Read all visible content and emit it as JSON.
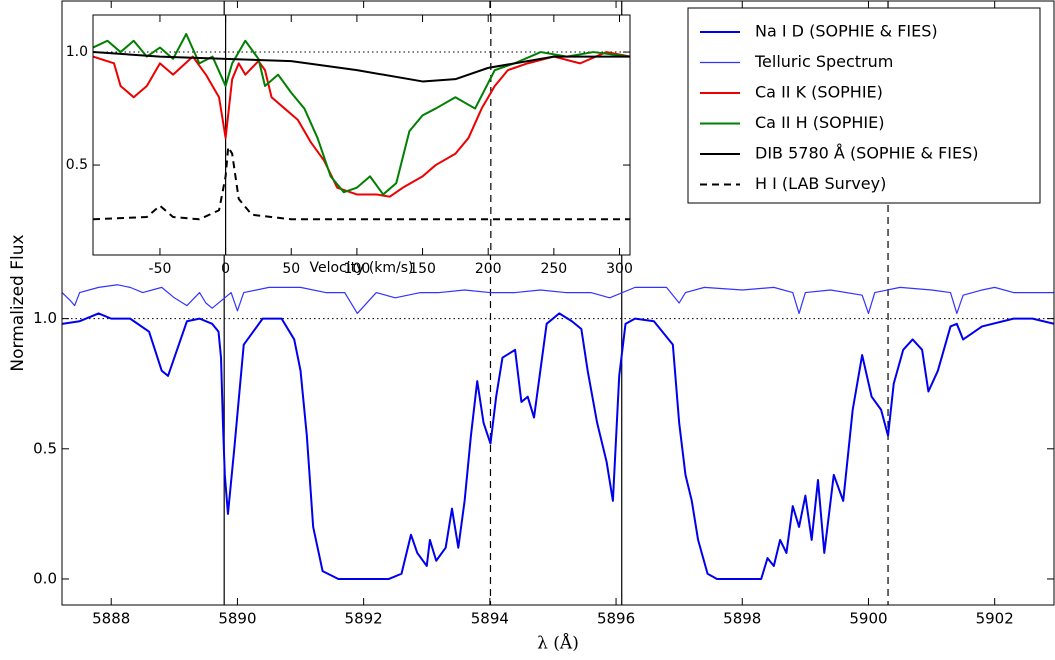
{
  "chart_data": [
    {
      "type": "line",
      "y_label": "Normalized Flux",
      "x_label": "λ (Å)",
      "xlim": [
        5887.22,
        5902.94
      ],
      "ylim": [
        -0.1,
        2.22
      ],
      "xticks": [
        5888,
        5890,
        5892,
        5894,
        5896,
        5898,
        5900,
        5902
      ],
      "yticks": [
        {
          "value": 0,
          "label": "0.0"
        },
        0.5,
        {
          "value": 1,
          "label": "1.0"
        }
      ],
      "hline": 1,
      "vlines": [
        {
          "x": 5889.79,
          "style": "solid"
        },
        {
          "x": 5894.01,
          "style": "dashed"
        },
        {
          "x": 5896.09,
          "style": "solid"
        },
        {
          "x": 5900.31,
          "style": "dashed"
        }
      ],
      "legend": "upper right",
      "series": [
        {
          "name": "Na I D (SOPHIE & FIES)",
          "color": "#0000ee",
          "width": 2,
          "style": "solid",
          "x": [
            5887.22,
            5887.5,
            5887.8,
            5888.0,
            5888.3,
            5888.6,
            5888.8,
            5888.9,
            5889.0,
            5889.2,
            5889.4,
            5889.6,
            5889.7,
            5889.74,
            5889.77,
            5889.8,
            5889.85,
            5889.95,
            5890.1,
            5890.4,
            5890.7,
            5890.9,
            5891.0,
            5891.1,
            5891.2,
            5891.35,
            5891.6,
            5892.0,
            5892.4,
            5892.6,
            5892.75,
            5892.85,
            5893.0,
            5893.05,
            5893.15,
            5893.3,
            5893.4,
            5893.5,
            5893.6,
            5893.7,
            5893.8,
            5893.9,
            5894.01,
            5894.1,
            5894.2,
            5894.4,
            5894.5,
            5894.6,
            5894.7,
            5894.8,
            5894.9,
            5895.1,
            5895.3,
            5895.45,
            5895.55,
            5895.7,
            5895.85,
            5895.95,
            5896.05,
            5896.15,
            5896.3,
            5896.6,
            5896.9,
            5897.0,
            5897.1,
            5897.2,
            5897.3,
            5897.45,
            5897.6,
            5898.0,
            5898.3,
            5898.4,
            5898.5,
            5898.6,
            5898.7,
            5898.8,
            5898.9,
            5899.0,
            5899.1,
            5899.2,
            5899.3,
            5899.45,
            5899.6,
            5899.75,
            5899.9,
            5900.05,
            5900.2,
            5900.31,
            5900.4,
            5900.55,
            5900.7,
            5900.85,
            5900.95,
            5901.1,
            5901.3,
            5901.4,
            5901.5,
            5901.8,
            5902.3,
            5902.6,
            5902.94
          ],
          "values": [
            0.98,
            0.99,
            1.02,
            1.0,
            1.0,
            0.95,
            0.8,
            0.78,
            0.85,
            0.99,
            1.0,
            0.98,
            0.95,
            0.85,
            0.6,
            0.4,
            0.25,
            0.5,
            0.9,
            1.0,
            1.0,
            0.92,
            0.8,
            0.55,
            0.2,
            0.03,
            0.0,
            0.0,
            0.0,
            0.02,
            0.17,
            0.1,
            0.05,
            0.15,
            0.07,
            0.12,
            0.27,
            0.12,
            0.3,
            0.55,
            0.76,
            0.6,
            0.52,
            0.7,
            0.85,
            0.88,
            0.68,
            0.7,
            0.62,
            0.8,
            0.98,
            1.02,
            0.99,
            0.96,
            0.8,
            0.6,
            0.45,
            0.3,
            0.78,
            0.98,
            1.0,
            0.99,
            0.9,
            0.6,
            0.4,
            0.3,
            0.15,
            0.02,
            0.0,
            0.0,
            0.0,
            0.08,
            0.05,
            0.15,
            0.1,
            0.28,
            0.2,
            0.32,
            0.15,
            0.38,
            0.1,
            0.4,
            0.3,
            0.65,
            0.86,
            0.7,
            0.65,
            0.55,
            0.75,
            0.88,
            0.92,
            0.88,
            0.72,
            0.8,
            0.97,
            0.98,
            0.92,
            0.97,
            1.0,
            1.0,
            0.98
          ]
        },
        {
          "name": "Telluric Spectrum",
          "color": "#3333ff",
          "width": 1.2,
          "style": "solid",
          "x": [
            5887.22,
            5887.35,
            5887.42,
            5887.5,
            5887.8,
            5888.1,
            5888.3,
            5888.5,
            5888.8,
            5889.0,
            5889.2,
            5889.4,
            5889.5,
            5889.6,
            5889.9,
            5890.0,
            5890.1,
            5890.5,
            5891.0,
            5891.4,
            5891.7,
            5891.9,
            5892.2,
            5892.5,
            5892.9,
            5893.2,
            5893.6,
            5894.0,
            5894.4,
            5894.8,
            5895.2,
            5895.6,
            5895.9,
            5896.3,
            5896.8,
            5897.0,
            5897.1,
            5897.4,
            5898.0,
            5898.5,
            5898.8,
            5898.9,
            5899.0,
            5899.4,
            5899.9,
            5900.0,
            5900.1,
            5900.5,
            5901.0,
            5901.3,
            5901.4,
            5901.5,
            5901.8,
            5902.0,
            5902.3,
            5902.94
          ],
          "values": [
            1.1,
            1.07,
            1.05,
            1.1,
            1.12,
            1.13,
            1.12,
            1.1,
            1.12,
            1.08,
            1.05,
            1.1,
            1.06,
            1.04,
            1.1,
            1.03,
            1.1,
            1.12,
            1.12,
            1.1,
            1.1,
            1.02,
            1.1,
            1.08,
            1.1,
            1.1,
            1.11,
            1.1,
            1.1,
            1.11,
            1.1,
            1.1,
            1.08,
            1.12,
            1.12,
            1.06,
            1.1,
            1.12,
            1.11,
            1.12,
            1.1,
            1.02,
            1.1,
            1.11,
            1.09,
            1.02,
            1.1,
            1.12,
            1.11,
            1.1,
            1.02,
            1.09,
            1.11,
            1.12,
            1.1,
            1.1
          ]
        }
      ]
    },
    {
      "type": "line",
      "x_label": "Velocity (km/s)",
      "xlim": [
        -101,
        308
      ],
      "ylim": [
        0.102,
        1.164
      ],
      "xticks": [
        -50,
        0,
        50,
        100,
        150,
        200,
        250,
        300
      ],
      "yticks": [
        0.5,
        {
          "value": 1,
          "label": "1.0"
        }
      ],
      "hline": 1,
      "vlines": [
        {
          "x": 0,
          "style": "solid"
        },
        {
          "x": 202,
          "style": "dashed"
        }
      ],
      "series": [
        {
          "name": "Ca II K (SOPHIE)",
          "color": "#ee0000",
          "width": 2,
          "style": "solid",
          "x": [
            -101,
            -85,
            -80,
            -70,
            -60,
            -50,
            -40,
            -25,
            -15,
            -5,
            0,
            5,
            10,
            15,
            25,
            30,
            35,
            45,
            55,
            65,
            75,
            85,
            100,
            115,
            125,
            135,
            150,
            160,
            175,
            185,
            195,
            205,
            215,
            230,
            250,
            270,
            290,
            308
          ],
          "values": [
            0.98,
            0.95,
            0.85,
            0.8,
            0.85,
            0.95,
            0.9,
            0.98,
            0.9,
            0.8,
            0.62,
            0.88,
            0.95,
            0.9,
            0.96,
            0.92,
            0.8,
            0.75,
            0.7,
            0.6,
            0.52,
            0.4,
            0.37,
            0.37,
            0.36,
            0.4,
            0.45,
            0.5,
            0.55,
            0.62,
            0.75,
            0.85,
            0.92,
            0.95,
            0.98,
            0.95,
            1.0,
            0.98
          ]
        },
        {
          "name": "Ca II H (SOPHIE)",
          "color": "#008000",
          "width": 2,
          "style": "solid",
          "x": [
            -101,
            -90,
            -80,
            -70,
            -60,
            -50,
            -40,
            -30,
            -20,
            -10,
            0,
            5,
            15,
            25,
            30,
            40,
            50,
            60,
            70,
            80,
            90,
            100,
            110,
            120,
            130,
            140,
            150,
            160,
            175,
            190,
            205,
            220,
            240,
            260,
            280,
            308
          ],
          "values": [
            1.02,
            1.05,
            1.0,
            1.05,
            0.98,
            1.02,
            0.97,
            1.08,
            0.95,
            0.98,
            0.85,
            0.95,
            1.05,
            0.97,
            0.85,
            0.9,
            0.82,
            0.75,
            0.62,
            0.45,
            0.38,
            0.4,
            0.45,
            0.37,
            0.42,
            0.65,
            0.72,
            0.75,
            0.8,
            0.75,
            0.92,
            0.95,
            1.0,
            0.98,
            1.0,
            0.98
          ]
        },
        {
          "name": "DIB 5780 Å (SOPHIE & FIES)",
          "color": "#000000",
          "width": 2,
          "style": "solid",
          "x": [
            -101,
            -50,
            0,
            50,
            100,
            150,
            175,
            200,
            250,
            308
          ],
          "values": [
            1.0,
            0.98,
            0.97,
            0.96,
            0.92,
            0.87,
            0.88,
            0.93,
            0.98,
            0.98
          ]
        },
        {
          "name": "H I (LAB Survey)",
          "color": "#000000",
          "width": 2,
          "style": "dashed",
          "x": [
            -101,
            -60,
            -50,
            -40,
            -20,
            -5,
            0,
            2,
            5,
            10,
            20,
            50,
            308
          ],
          "values": [
            0.26,
            0.27,
            0.32,
            0.27,
            0.26,
            0.3,
            0.45,
            0.58,
            0.55,
            0.35,
            0.28,
            0.26,
            0.26
          ]
        }
      ]
    }
  ]
}
